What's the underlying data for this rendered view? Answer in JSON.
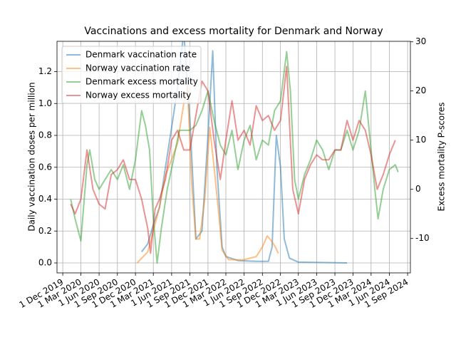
{
  "chart_data": {
    "type": "line",
    "title": "Vaccinations and excess mortality for Denmark and Norway",
    "ylabel": "Daily vaccination doses per million",
    "y2label": "Excess mortality P-scores",
    "xlim": [
      "2019-11-02",
      "2024-09-15"
    ],
    "xticks": [
      {
        "value": "2019-12-01",
        "label": "1 Dec 2019"
      },
      {
        "value": "2020-03-01",
        "label": "1 Mar 2020"
      },
      {
        "value": "2020-06-01",
        "label": "1 Jun 2020"
      },
      {
        "value": "2020-09-01",
        "label": "1 Sep 2020"
      },
      {
        "value": "2020-12-01",
        "label": "1 Dec 2020"
      },
      {
        "value": "2021-03-01",
        "label": "1 Mar 2021"
      },
      {
        "value": "2021-06-01",
        "label": "1 Jun 2021"
      },
      {
        "value": "2021-09-01",
        "label": "1 Sep 2021"
      },
      {
        "value": "2021-12-01",
        "label": "1 Dec 2021"
      },
      {
        "value": "2022-03-01",
        "label": "1 Mar 2022"
      },
      {
        "value": "2022-06-01",
        "label": "1 Jun 2022"
      },
      {
        "value": "2022-09-01",
        "label": "1 Sep 2022"
      },
      {
        "value": "2022-12-01",
        "label": "1 Dec 2022"
      },
      {
        "value": "2023-03-01",
        "label": "1 Mar 2023"
      },
      {
        "value": "2023-06-01",
        "label": "1 Jun 2023"
      },
      {
        "value": "2023-09-01",
        "label": "1 Sep 2023"
      },
      {
        "value": "2023-12-01",
        "label": "1 Dec 2023"
      },
      {
        "value": "2024-03-01",
        "label": "1 Mar 2024"
      },
      {
        "value": "2024-06-01",
        "label": "1 Jun 2024"
      },
      {
        "value": "2024-09-01",
        "label": "1 Sep 2024"
      }
    ],
    "ylim": [
      -0.0625,
      1.39
    ],
    "yticks": [
      {
        "value": 0,
        "label": "0.0"
      },
      0.2,
      0.4,
      0.6,
      0.8,
      {
        "value": 1,
        "label": "1.0"
      },
      1.2
    ],
    "y2lim": [
      -17,
      30.1
    ],
    "y2ticks": [
      -10,
      0,
      10,
      20,
      30
    ],
    "grid": true,
    "legend": "upper-left",
    "alpha": 0.5,
    "series": [
      {
        "name": "Denmark vaccination rate",
        "color": "#1f77b4",
        "x": [
          "2021-01-01",
          "2021-02-01",
          "2021-03-01",
          "2021-04-01",
          "2021-05-01",
          "2021-06-01",
          "2021-07-01",
          "2021-08-01",
          "2021-09-01",
          "2021-10-01",
          "2021-11-01",
          "2021-12-01",
          "2021-12-25",
          "2022-01-15",
          "2022-02-10",
          "2022-03-01",
          "2022-05-01",
          "2022-08-01",
          "2022-10-01",
          "2022-10-20",
          "2022-11-10",
          "2022-12-01",
          "2022-12-20",
          "2023-01-15",
          "2023-03-01",
          "2023-11-01"
        ],
        "values": [
          0.07,
          0.12,
          0.24,
          0.35,
          0.6,
          0.85,
          1.1,
          1.45,
          0.9,
          0.15,
          0.2,
          0.8,
          1.33,
          0.6,
          0.1,
          0.04,
          0.015,
          0.01,
          0.01,
          0.1,
          0.8,
          0.6,
          0.15,
          0.03,
          0.005,
          0
        ]
      },
      {
        "name": "Norway vaccination rate",
        "color": "#ff7f0e",
        "x": [
          "2020-12-10",
          "2021-02-01",
          "2021-03-01",
          "2021-04-01",
          "2021-05-01",
          "2021-06-01",
          "2021-07-01",
          "2021-08-01",
          "2021-08-20",
          "2021-09-10",
          "2021-10-01",
          "2021-10-20",
          "2021-11-15",
          "2021-12-10",
          "2022-01-01",
          "2022-01-25",
          "2022-02-10",
          "2022-03-15",
          "2022-06-01",
          "2022-08-01",
          "2022-09-01",
          "2022-09-25",
          "2022-10-15",
          "2022-11-05",
          "2022-11-20"
        ],
        "values": [
          0,
          0.07,
          0.2,
          0.35,
          0.55,
          0.65,
          0.75,
          1,
          1.1,
          0.5,
          0.15,
          0.15,
          0.4,
          0.85,
          0.6,
          0.3,
          0.08,
          0.02,
          0.02,
          0.04,
          0.1,
          0.17,
          0.14,
          0.1,
          0.06
        ]
      },
      {
        "name": "Denmark excess mortality",
        "color": "#2ca02c",
        "axis": "y2",
        "x": [
          "2020-01-10",
          "2020-02-01",
          "2020-03-01",
          "2020-04-01",
          "2020-04-15",
          "2020-05-10",
          "2020-06-01",
          "2020-07-01",
          "2020-08-01",
          "2020-09-01",
          "2020-10-01",
          "2020-11-01",
          "2020-12-01",
          "2021-01-01",
          "2021-01-20",
          "2021-02-10",
          "2021-03-01",
          "2021-03-20",
          "2021-04-10",
          "2021-05-10",
          "2021-06-10",
          "2021-07-10",
          "2021-08-01",
          "2021-09-01",
          "2021-10-01",
          "2021-11-01",
          "2021-12-01",
          "2022-01-01",
          "2022-02-01",
          "2022-03-01",
          "2022-04-01",
          "2022-05-01",
          "2022-06-01",
          "2022-07-01",
          "2022-08-01",
          "2022-09-01",
          "2022-10-01",
          "2022-11-01",
          "2022-12-01",
          "2023-01-01",
          "2023-01-20",
          "2023-02-10",
          "2023-03-01",
          "2023-04-01",
          "2023-05-01",
          "2023-06-01",
          "2023-07-01",
          "2023-08-01",
          "2023-09-01",
          "2023-10-01",
          "2023-11-01",
          "2023-12-01",
          "2024-01-01",
          "2024-02-01",
          "2024-03-01",
          "2024-03-20",
          "2024-04-05",
          "2024-05-01",
          "2024-06-01",
          "2024-07-01",
          "2024-07-15"
        ],
        "values": [
          -2,
          -6,
          -10.5,
          5,
          8,
          2,
          0,
          2,
          4,
          2,
          5,
          0,
          6,
          16,
          13,
          8,
          -6,
          -15,
          -8,
          0,
          6,
          12,
          12,
          12,
          13,
          16,
          20,
          14,
          9,
          7,
          12,
          4,
          10,
          13,
          6,
          10,
          9,
          16,
          18,
          28,
          20,
          2,
          -2,
          3,
          6,
          10,
          8,
          4,
          8,
          8,
          12,
          8,
          12,
          20,
          8,
          0,
          -6,
          0,
          4,
          5,
          3.5
        ]
      },
      {
        "name": "Norway excess mortality",
        "color": "#d62728",
        "axis": "y2",
        "x": [
          "2020-01-10",
          "2020-02-01",
          "2020-03-01",
          "2020-04-01",
          "2020-05-01",
          "2020-06-01",
          "2020-07-01",
          "2020-08-01",
          "2020-09-01",
          "2020-10-01",
          "2020-11-01",
          "2020-12-01",
          "2021-01-01",
          "2021-02-01",
          "2021-02-15",
          "2021-03-10",
          "2021-04-01",
          "2021-05-01",
          "2021-06-01",
          "2021-07-01",
          "2021-08-01",
          "2021-09-01",
          "2021-10-01",
          "2021-11-01",
          "2021-12-01",
          "2022-01-01",
          "2022-02-01",
          "2022-03-01",
          "2022-04-01",
          "2022-05-01",
          "2022-06-01",
          "2022-07-01",
          "2022-08-01",
          "2022-09-01",
          "2022-10-01",
          "2022-11-01",
          "2022-12-01",
          "2023-01-01",
          "2023-02-01",
          "2023-03-01",
          "2023-04-01",
          "2023-05-01",
          "2023-06-01",
          "2023-07-01",
          "2023-08-01",
          "2023-09-01",
          "2023-10-01",
          "2023-11-01",
          "2023-12-01",
          "2024-01-01",
          "2024-02-01",
          "2024-03-01",
          "2024-04-01",
          "2024-05-01",
          "2024-06-01",
          "2024-07-01"
        ],
        "values": [
          -3,
          -5,
          -2,
          8,
          0,
          -3,
          -4,
          3,
          4,
          6,
          2,
          2,
          -2,
          -8,
          -13,
          -4,
          -2,
          2,
          10,
          12,
          8,
          8,
          15,
          22,
          20,
          10,
          2,
          10,
          18,
          10,
          12,
          9,
          17,
          14,
          15,
          12,
          14,
          25,
          0,
          -5,
          2,
          5,
          7,
          6,
          6,
          8,
          8,
          14,
          10,
          14,
          12,
          7,
          0,
          3,
          7,
          10
        ]
      }
    ]
  }
}
